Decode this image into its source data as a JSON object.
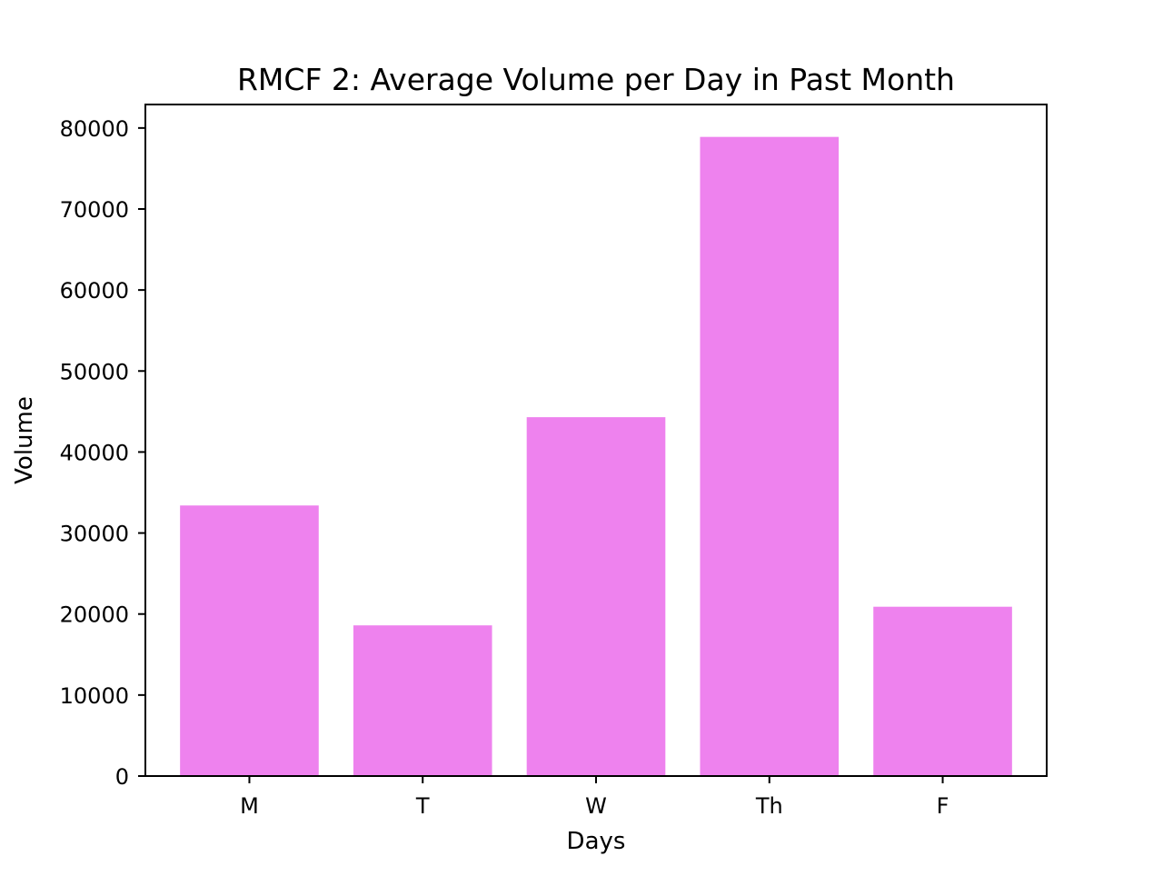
{
  "chart_data": {
    "type": "bar",
    "title": "RMCF 2: Average Volume per Day in Past Month",
    "xlabel": "Days",
    "ylabel": "Volume",
    "categories": [
      "M",
      "T",
      "W",
      "Th",
      "F"
    ],
    "values": [
      33400,
      18600,
      44300,
      78900,
      20900
    ],
    "ylim": [
      0,
      82900
    ],
    "yticks": [
      0,
      10000,
      20000,
      30000,
      40000,
      50000,
      60000,
      70000,
      80000
    ],
    "grid": false,
    "legend": "none",
    "bar_color": "#ee82ee",
    "axis_color": "#000000"
  }
}
